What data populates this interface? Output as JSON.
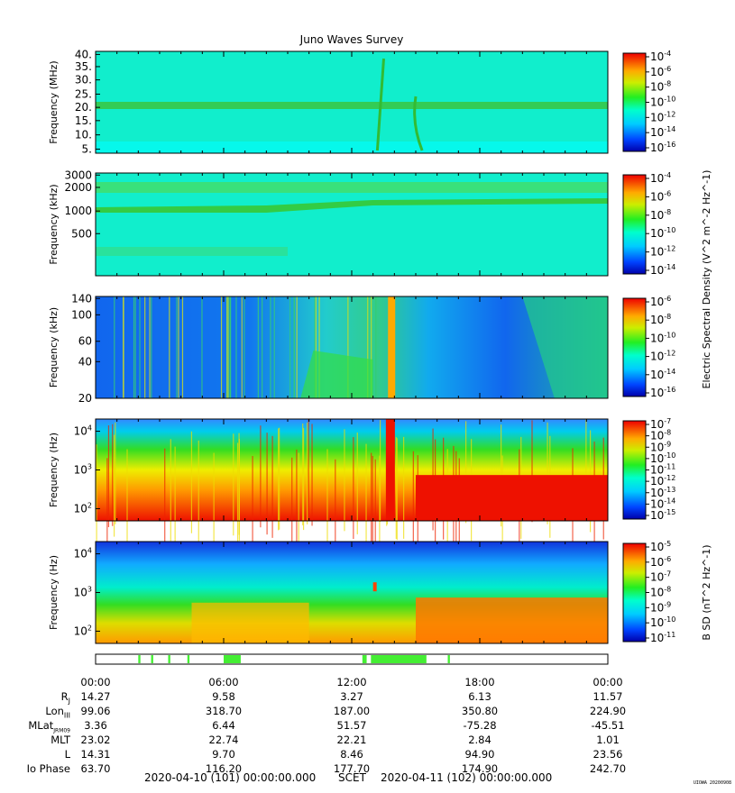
{
  "title": "Juno Waves Survey",
  "chart_data": [
    {
      "type": "heatmap",
      "ylabel": "Frequency (MHz)",
      "yticks": [
        "40.",
        "35.",
        "30.",
        "25.",
        "20.",
        "15.",
        "10.",
        "5."
      ],
      "ylim": [
        3.5,
        41
      ],
      "colorbar_ticks": [
        "-4",
        "-6",
        "-8",
        "-10",
        "-12",
        "-14",
        "-16"
      ],
      "colorbar_label": ""
    },
    {
      "type": "heatmap",
      "ylabel": "Frequency (kHz)",
      "yticks": [
        "3000",
        "2000",
        "1000",
        "500"
      ],
      "colorbar_ticks": [
        "-4",
        "-6",
        "-8",
        "-10",
        "-12",
        "-14"
      ],
      "colorbar_label": "Electric Spectral Density (V^2 m^-2 Hz^-1)"
    },
    {
      "type": "heatmap",
      "ylabel": "Frequency (kHz)",
      "yticks": [
        "140",
        "100",
        "60",
        "40",
        "20"
      ],
      "colorbar_ticks": [
        "-6",
        "-8",
        "-10",
        "-12",
        "-14",
        "-16"
      ],
      "colorbar_label": ""
    },
    {
      "type": "heatmap",
      "ylabel": "Frequency (Hz)",
      "yticks": [
        "4",
        "3",
        "2"
      ],
      "colorbar_ticks": [
        "-7",
        "-8",
        "-9",
        "-10",
        "-11",
        "-12",
        "-13",
        "-14",
        "-15"
      ],
      "colorbar_label": ""
    },
    {
      "type": "heatmap",
      "ylabel": "Frequency (Hz)",
      "yticks": [
        "4",
        "3",
        "2"
      ],
      "colorbar_ticks": [
        "-5",
        "-6",
        "-7",
        "-8",
        "-9",
        "-10",
        "-11"
      ],
      "colorbar_label": "B SD (nT^2 Hz^-1)"
    }
  ],
  "mode_bar": {
    "segments": [
      [
        2.0,
        2.1
      ],
      [
        2.6,
        2.7
      ],
      [
        3.4,
        3.5
      ],
      [
        4.3,
        4.4
      ],
      [
        6.0,
        6.8
      ],
      [
        12.5,
        12.7
      ],
      [
        12.9,
        15.5
      ],
      [
        16.5,
        16.6
      ]
    ]
  },
  "time_ticks": [
    "00:00",
    "06:00",
    "12:00",
    "18:00",
    "00:00"
  ],
  "ephemeris": [
    {
      "label": "R",
      "sub": "J",
      "values": [
        "14.27",
        "9.58",
        "3.27",
        "6.13",
        "11.57"
      ]
    },
    {
      "label": "Lon",
      "sub": "III",
      "values": [
        "99.06",
        "318.70",
        "187.00",
        "350.80",
        "224.90"
      ]
    },
    {
      "label": "MLat",
      "sub": "JRM09",
      "values": [
        "3.36",
        "6.44",
        "51.57",
        "-75.28",
        "-45.51"
      ]
    },
    {
      "label": "MLT",
      "sub": "",
      "values": [
        "23.02",
        "22.74",
        "22.21",
        "2.84",
        "1.01"
      ]
    },
    {
      "label": "L",
      "sub": "",
      "values": [
        "14.31",
        "9.70",
        "8.46",
        "94.90",
        "23.56"
      ]
    },
    {
      "label": "Io Phase",
      "sub": "",
      "values": [
        "63.70",
        "116.20",
        "177.70",
        "174.90",
        "242.70"
      ]
    }
  ],
  "footer": {
    "start": "2020-04-10 (101) 00:00:00.000",
    "axis": "SCET",
    "end": "2020-04-11 (102) 00:00:00.000"
  },
  "stamp": "UIOWA 20200908"
}
